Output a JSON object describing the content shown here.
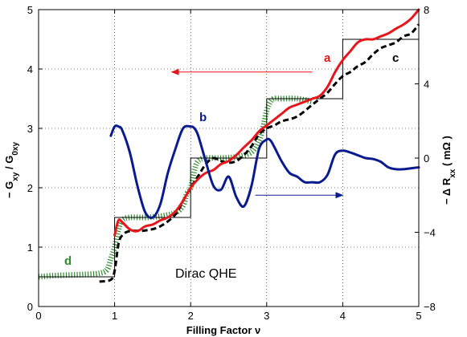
{
  "chart_data": {
    "type": "line",
    "xlabel": "Filling Factor  ν",
    "ylabel_left": "− G_xy / G_0xy",
    "ylabel_right": "−Δ R_xx  ( mΩ )",
    "xlim": [
      0,
      5
    ],
    "ylim_left": [
      0,
      5
    ],
    "ylim_right": [
      -8,
      8
    ],
    "x_ticks": [
      "0",
      "1",
      "2",
      "3",
      "4",
      "5"
    ],
    "y_left_ticks": [
      "0",
      "1",
      "2",
      "3",
      "4",
      "5"
    ],
    "y_right_ticks": [
      "−8",
      "−4",
      "0",
      "4",
      "8"
    ],
    "grid": true,
    "annotations": {
      "a": "a",
      "b": "b",
      "c": "c",
      "d": "d",
      "dirac": "Dirac QHE"
    },
    "colors": {
      "a": "#e8151b",
      "b": "#0a1a8f",
      "c": "#000000",
      "d": "#2e8b2e",
      "steps": "#000000"
    },
    "series": [
      {
        "key": "steps",
        "axis": "left",
        "x": [
          0,
          1,
          1,
          2,
          2,
          3,
          3,
          4,
          4,
          5
        ],
        "y": [
          0.5,
          0.5,
          1.5,
          1.5,
          2.5,
          2.5,
          3.5,
          3.5,
          4.5,
          4.5
        ]
      },
      {
        "key": "a",
        "axis": "left",
        "x": [
          1.0,
          1.05,
          1.1,
          1.2,
          1.3,
          1.4,
          1.5,
          1.6,
          1.7,
          1.8,
          1.9,
          2.0,
          2.1,
          2.2,
          2.3,
          2.4,
          2.5,
          2.6,
          2.7,
          2.8,
          2.9,
          3.0,
          3.1,
          3.2,
          3.3,
          3.4,
          3.5,
          3.6,
          3.7,
          3.8,
          3.9,
          4.0,
          4.1,
          4.2,
          4.3,
          4.4,
          4.5,
          4.6,
          4.7,
          4.8,
          4.9,
          5.0
        ],
        "y": [
          1.2,
          1.45,
          1.42,
          1.3,
          1.27,
          1.35,
          1.38,
          1.45,
          1.5,
          1.6,
          1.78,
          2.0,
          2.15,
          2.25,
          2.3,
          2.4,
          2.45,
          2.55,
          2.68,
          2.8,
          2.95,
          3.05,
          3.15,
          3.25,
          3.35,
          3.4,
          3.45,
          3.5,
          3.55,
          3.7,
          3.95,
          4.15,
          4.3,
          4.45,
          4.5,
          4.5,
          4.55,
          4.6,
          4.68,
          4.75,
          4.85,
          5.0
        ]
      },
      {
        "key": "c",
        "axis": "left",
        "x": [
          0.8,
          0.95,
          1.0,
          1.05,
          1.1,
          1.2,
          1.4,
          1.6,
          1.8,
          1.9,
          2.0,
          2.1,
          2.2,
          2.3,
          2.4,
          2.5,
          2.6,
          2.7,
          2.8,
          2.9,
          3.0,
          3.1,
          3.2,
          3.4,
          3.6,
          3.7,
          3.8,
          3.9,
          4.0,
          4.1,
          4.2,
          4.3,
          4.4,
          4.5,
          4.6,
          4.7,
          4.8,
          4.9,
          5.0
        ],
        "y": [
          0.42,
          0.45,
          0.6,
          1.05,
          1.2,
          1.27,
          1.28,
          1.35,
          1.55,
          1.78,
          2.0,
          2.2,
          2.4,
          2.5,
          2.45,
          2.42,
          2.45,
          2.55,
          2.7,
          2.9,
          3.0,
          3.05,
          3.12,
          3.2,
          3.4,
          3.5,
          3.6,
          3.75,
          3.88,
          3.95,
          4.05,
          4.12,
          4.25,
          4.35,
          4.4,
          4.45,
          4.55,
          4.6,
          4.75
        ]
      },
      {
        "key": "d",
        "axis": "left",
        "x": [
          0.0,
          0.2,
          0.4,
          0.6,
          0.8,
          0.9,
          0.95,
          1.0,
          1.05,
          1.1,
          1.2,
          1.4,
          1.6,
          1.8,
          1.9,
          1.95,
          2.0,
          2.05,
          2.1,
          2.2,
          2.4,
          2.6,
          2.8,
          2.9,
          2.95,
          3.0,
          3.05,
          3.1,
          3.2,
          3.4,
          3.6
        ],
        "y": [
          0.5,
          0.52,
          0.53,
          0.54,
          0.56,
          0.62,
          0.8,
          1.0,
          1.3,
          1.45,
          1.5,
          1.5,
          1.52,
          1.58,
          1.7,
          1.9,
          2.0,
          2.3,
          2.45,
          2.5,
          2.5,
          2.52,
          2.6,
          2.8,
          3.0,
          3.3,
          3.45,
          3.5,
          3.5,
          3.5,
          3.45
        ]
      },
      {
        "key": "b",
        "axis": "right",
        "x": [
          0.95,
          1.0,
          1.05,
          1.1,
          1.2,
          1.3,
          1.4,
          1.5,
          1.6,
          1.7,
          1.8,
          1.9,
          2.0,
          2.05,
          2.1,
          2.2,
          2.3,
          2.4,
          2.5,
          2.6,
          2.7,
          2.8,
          2.9,
          3.0,
          3.05,
          3.1,
          3.2,
          3.3,
          3.4,
          3.5,
          3.6,
          3.7,
          3.8,
          3.9,
          4.0,
          4.1,
          4.2,
          4.3,
          4.4,
          4.5,
          4.6,
          4.7,
          4.8,
          4.9,
          5.0
        ],
        "y": [
          1.2,
          1.7,
          1.7,
          1.5,
          0.3,
          -1.5,
          -2.9,
          -3.2,
          -2.5,
          -0.8,
          0.5,
          1.6,
          1.7,
          1.6,
          1.2,
          -0.2,
          -1.5,
          -1.7,
          -1.0,
          -2.1,
          -2.6,
          -1.5,
          0.5,
          1.0,
          0.95,
          0.6,
          -0.2,
          -0.8,
          -1.0,
          -1.3,
          -1.3,
          -1.3,
          -0.9,
          0.2,
          0.4,
          0.3,
          0.15,
          0.0,
          -0.05,
          -0.2,
          -0.5,
          -0.6,
          -0.6,
          -0.55,
          -0.5
        ]
      }
    ]
  }
}
